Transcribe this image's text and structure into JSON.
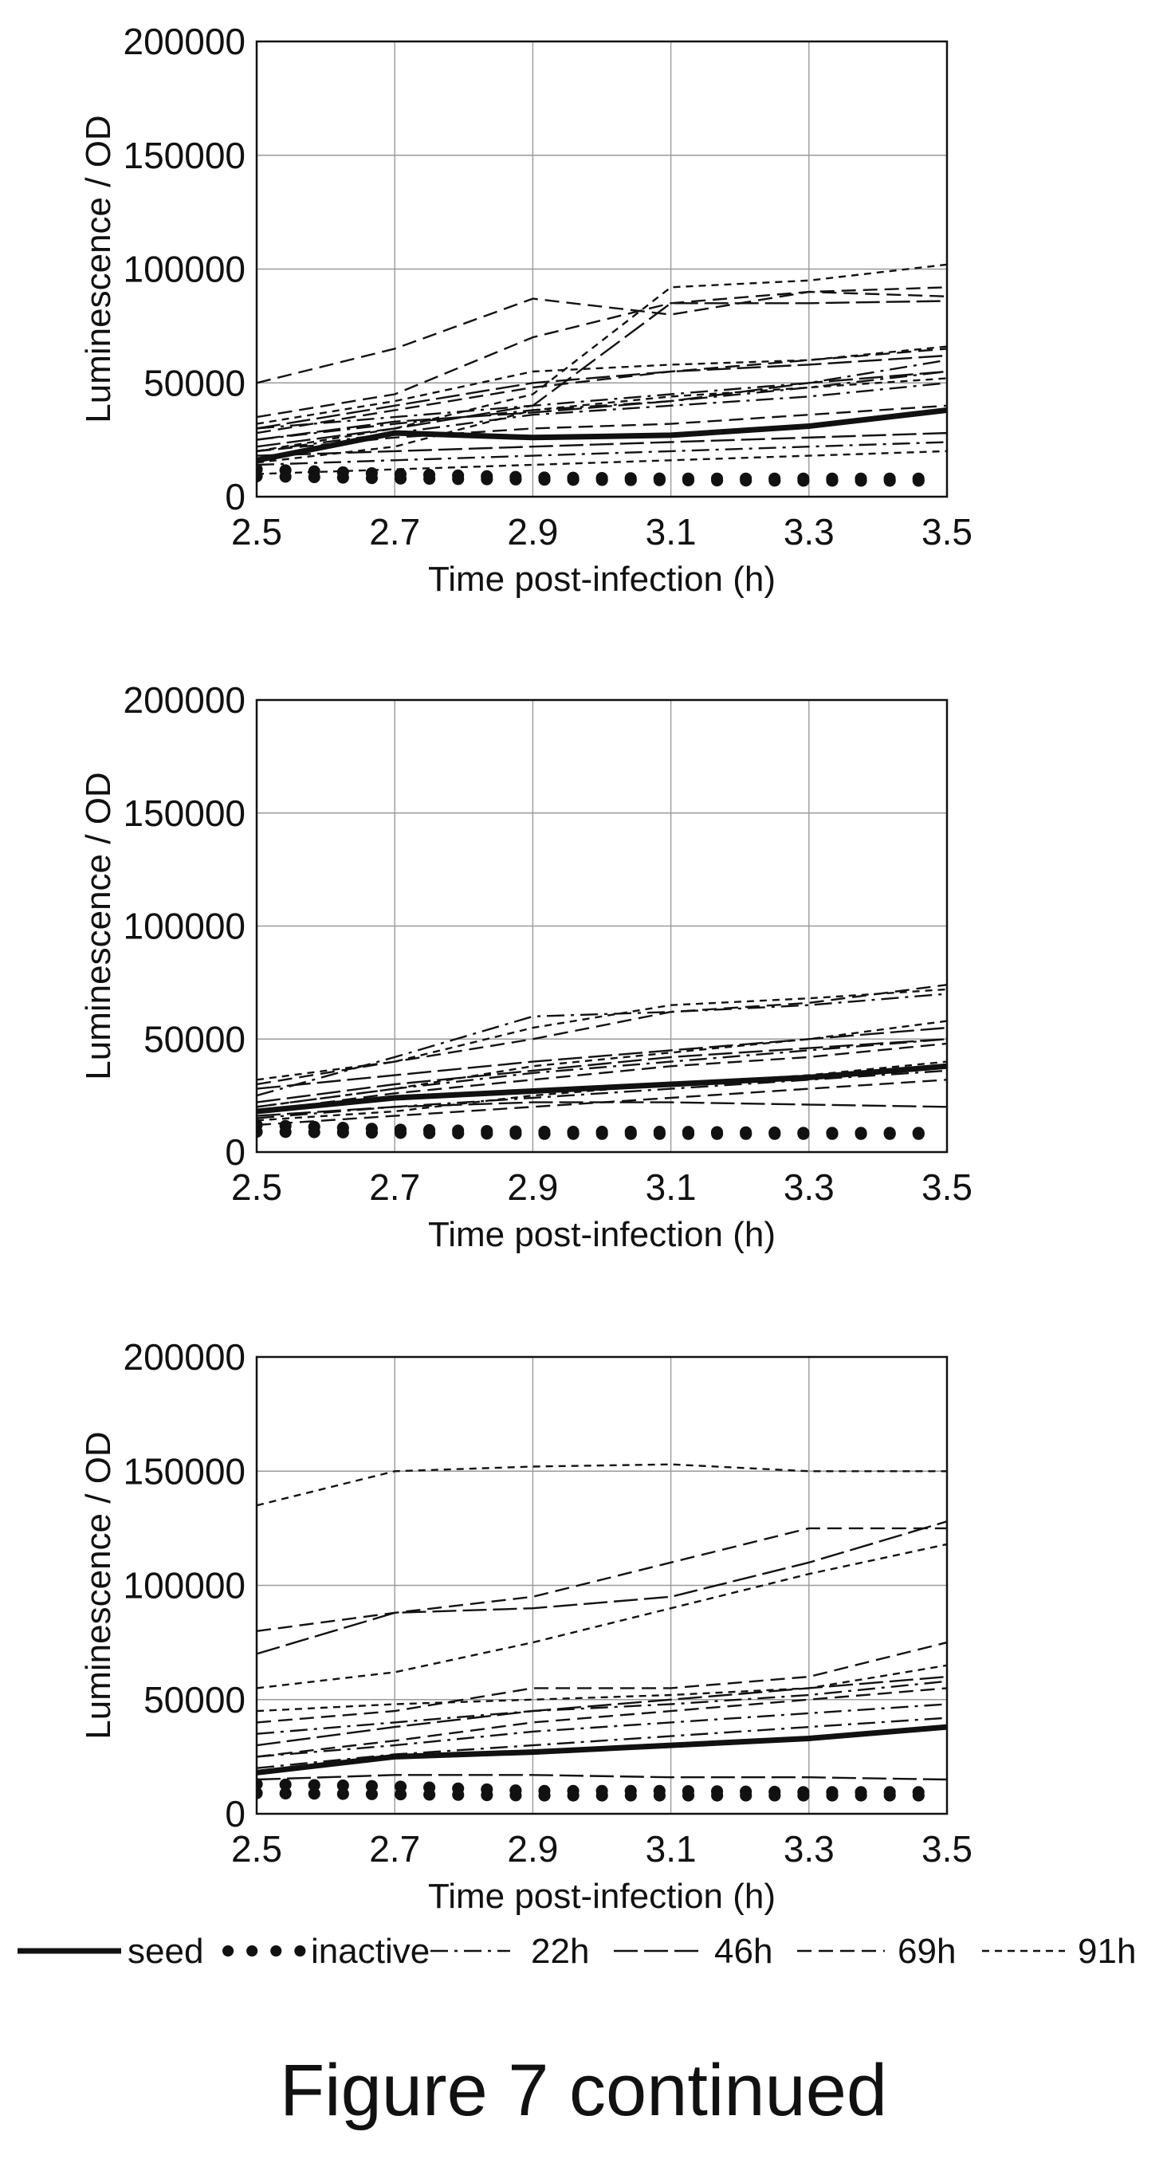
{
  "figure": {
    "caption": "Figure 7 continued",
    "legend": [
      {
        "name": "seed",
        "style": "solid-thick"
      },
      {
        "name": "inactive",
        "style": "dots"
      },
      {
        "name": "22h",
        "style": "dash-dot"
      },
      {
        "name": "46h",
        "style": "long-dash"
      },
      {
        "name": "69h",
        "style": "medium-dash"
      },
      {
        "name": "91h",
        "style": "short-dash"
      }
    ]
  },
  "chart_data": [
    {
      "type": "line",
      "xlabel": "Time post-infection (h)",
      "ylabel": "Luminescence / OD",
      "xlim": [
        2.5,
        3.5
      ],
      "ylim": [
        0,
        200000
      ],
      "xticks": [
        "2.5",
        "2.7",
        "2.9",
        "3.1",
        "3.3",
        "3.5"
      ],
      "yticks": [
        "0",
        "50000",
        "100000",
        "150000",
        "200000"
      ],
      "grid": true,
      "x": [
        2.5,
        2.7,
        2.9,
        3.1,
        3.3,
        3.5
      ],
      "series": [
        {
          "group": "seed",
          "values": [
            16000,
            28000,
            26000,
            27000,
            31000,
            38000
          ]
        },
        {
          "group": "inactive",
          "values": [
            12000,
            10000,
            8500,
            8000,
            8000,
            8000
          ]
        },
        {
          "group": "inactive",
          "values": [
            9000,
            8000,
            7500,
            7200,
            7000,
            7000
          ]
        },
        {
          "group": "22h",
          "values": [
            25000,
            32000,
            38000,
            42000,
            48000,
            55000
          ]
        },
        {
          "group": "22h",
          "values": [
            20000,
            28000,
            36000,
            40000,
            44000,
            50000
          ]
        },
        {
          "group": "22h",
          "values": [
            30000,
            35000,
            40000,
            45000,
            50000,
            60000
          ]
        },
        {
          "group": "22h",
          "values": [
            14000,
            16000,
            18000,
            20000,
            22000,
            24000
          ]
        },
        {
          "group": "46h",
          "values": [
            30000,
            40000,
            50000,
            55000,
            58000,
            62000
          ]
        },
        {
          "group": "46h",
          "values": [
            22000,
            30000,
            40000,
            85000,
            85000,
            86000
          ]
        },
        {
          "group": "46h",
          "values": [
            25000,
            33000,
            37000,
            42000,
            50000,
            55000
          ]
        },
        {
          "group": "46h",
          "values": [
            18000,
            20000,
            22000,
            24000,
            26000,
            28000
          ]
        },
        {
          "group": "69h",
          "values": [
            50000,
            65000,
            87000,
            80000,
            90000,
            88000
          ]
        },
        {
          "group": "69h",
          "values": [
            35000,
            45000,
            70000,
            85000,
            90000,
            92000
          ]
        },
        {
          "group": "69h",
          "values": [
            28000,
            38000,
            48000,
            55000,
            60000,
            65000
          ]
        },
        {
          "group": "69h",
          "values": [
            20000,
            26000,
            30000,
            32000,
            36000,
            40000
          ]
        },
        {
          "group": "91h",
          "values": [
            32000,
            42000,
            55000,
            58000,
            60000,
            66000
          ]
        },
        {
          "group": "91h",
          "values": [
            20000,
            30000,
            45000,
            92000,
            95000,
            102000
          ]
        },
        {
          "group": "91h",
          "values": [
            15000,
            22000,
            38000,
            44000,
            48000,
            52000
          ]
        },
        {
          "group": "91h",
          "values": [
            10000,
            12000,
            14000,
            16000,
            18000,
            20000
          ]
        }
      ]
    },
    {
      "type": "line",
      "xlabel": "Time post-infection (h)",
      "ylabel": "Luminescence / OD",
      "xlim": [
        2.5,
        3.5
      ],
      "ylim": [
        0,
        200000
      ],
      "xticks": [
        "2.5",
        "2.7",
        "2.9",
        "3.1",
        "3.3",
        "3.5"
      ],
      "yticks": [
        "0",
        "50000",
        "100000",
        "150000",
        "200000"
      ],
      "grid": true,
      "x": [
        2.5,
        2.7,
        2.9,
        3.1,
        3.3,
        3.5
      ],
      "series": [
        {
          "group": "seed",
          "values": [
            18000,
            24000,
            27000,
            30000,
            33000,
            38000
          ]
        },
        {
          "group": "inactive",
          "values": [
            12000,
            10000,
            9000,
            9000,
            8500,
            8500
          ]
        },
        {
          "group": "inactive",
          "values": [
            9000,
            8500,
            8000,
            8000,
            8000,
            8000
          ]
        },
        {
          "group": "22h",
          "values": [
            25000,
            42000,
            60000,
            62000,
            65000,
            70000
          ]
        },
        {
          "group": "22h",
          "values": [
            20000,
            28000,
            35000,
            40000,
            45000,
            50000
          ]
        },
        {
          "group": "22h",
          "values": [
            15000,
            20000,
            24000,
            28000,
            32000,
            36000
          ]
        },
        {
          "group": "46h",
          "values": [
            22000,
            30000,
            36000,
            42000,
            46000,
            50000
          ]
        },
        {
          "group": "46h",
          "values": [
            16000,
            20000,
            22000,
            22000,
            21000,
            20000
          ]
        },
        {
          "group": "46h",
          "values": [
            28000,
            34000,
            40000,
            45000,
            50000,
            55000
          ]
        },
        {
          "group": "69h",
          "values": [
            30000,
            40000,
            50000,
            62000,
            66000,
            74000
          ]
        },
        {
          "group": "69h",
          "values": [
            18000,
            26000,
            32000,
            38000,
            42000,
            48000
          ]
        },
        {
          "group": "69h",
          "values": [
            12000,
            16000,
            20000,
            24000,
            28000,
            32000
          ]
        },
        {
          "group": "91h",
          "values": [
            32000,
            40000,
            55000,
            65000,
            68000,
            72000
          ]
        },
        {
          "group": "91h",
          "values": [
            20000,
            28000,
            38000,
            44000,
            50000,
            58000
          ]
        },
        {
          "group": "91h",
          "values": [
            14000,
            18000,
            25000,
            30000,
            34000,
            40000
          ]
        }
      ]
    },
    {
      "type": "line",
      "xlabel": "Time post-infection (h)",
      "ylabel": "Luminescence / OD",
      "xlim": [
        2.5,
        3.5
      ],
      "ylim": [
        0,
        200000
      ],
      "xticks": [
        "2.5",
        "2.7",
        "2.9",
        "3.1",
        "3.3",
        "3.5"
      ],
      "yticks": [
        "0",
        "50000",
        "100000",
        "150000",
        "200000"
      ],
      "grid": true,
      "x": [
        2.5,
        2.7,
        2.9,
        3.1,
        3.3,
        3.5
      ],
      "series": [
        {
          "group": "seed",
          "values": [
            18000,
            25000,
            27000,
            30000,
            33000,
            38000
          ]
        },
        {
          "group": "inactive",
          "values": [
            13000,
            12000,
            10000,
            10000,
            9500,
            9500
          ]
        },
        {
          "group": "inactive",
          "values": [
            9000,
            8500,
            8000,
            8000,
            8000,
            8000
          ]
        },
        {
          "group": "22h",
          "values": [
            35000,
            40000,
            45000,
            48000,
            52000,
            58000
          ]
        },
        {
          "group": "22h",
          "values": [
            25000,
            30000,
            36000,
            40000,
            44000,
            48000
          ]
        },
        {
          "group": "22h",
          "values": [
            20000,
            26000,
            30000,
            34000,
            38000,
            42000
          ]
        },
        {
          "group": "46h",
          "values": [
            70000,
            88000,
            90000,
            95000,
            110000,
            128000
          ]
        },
        {
          "group": "46h",
          "values": [
            30000,
            38000,
            45000,
            50000,
            55000,
            60000
          ]
        },
        {
          "group": "46h",
          "values": [
            15000,
            17000,
            17000,
            16000,
            16000,
            15000
          ]
        },
        {
          "group": "69h",
          "values": [
            80000,
            88000,
            95000,
            110000,
            125000,
            125000
          ]
        },
        {
          "group": "69h",
          "values": [
            40000,
            45000,
            55000,
            55000,
            60000,
            75000
          ]
        },
        {
          "group": "69h",
          "values": [
            25000,
            32000,
            40000,
            45000,
            50000,
            55000
          ]
        },
        {
          "group": "91h",
          "values": [
            135000,
            150000,
            152000,
            153000,
            150000,
            150000
          ]
        },
        {
          "group": "91h",
          "values": [
            55000,
            62000,
            75000,
            90000,
            105000,
            118000
          ]
        },
        {
          "group": "91h",
          "values": [
            45000,
            48000,
            50000,
            52000,
            55000,
            65000
          ]
        }
      ]
    }
  ]
}
